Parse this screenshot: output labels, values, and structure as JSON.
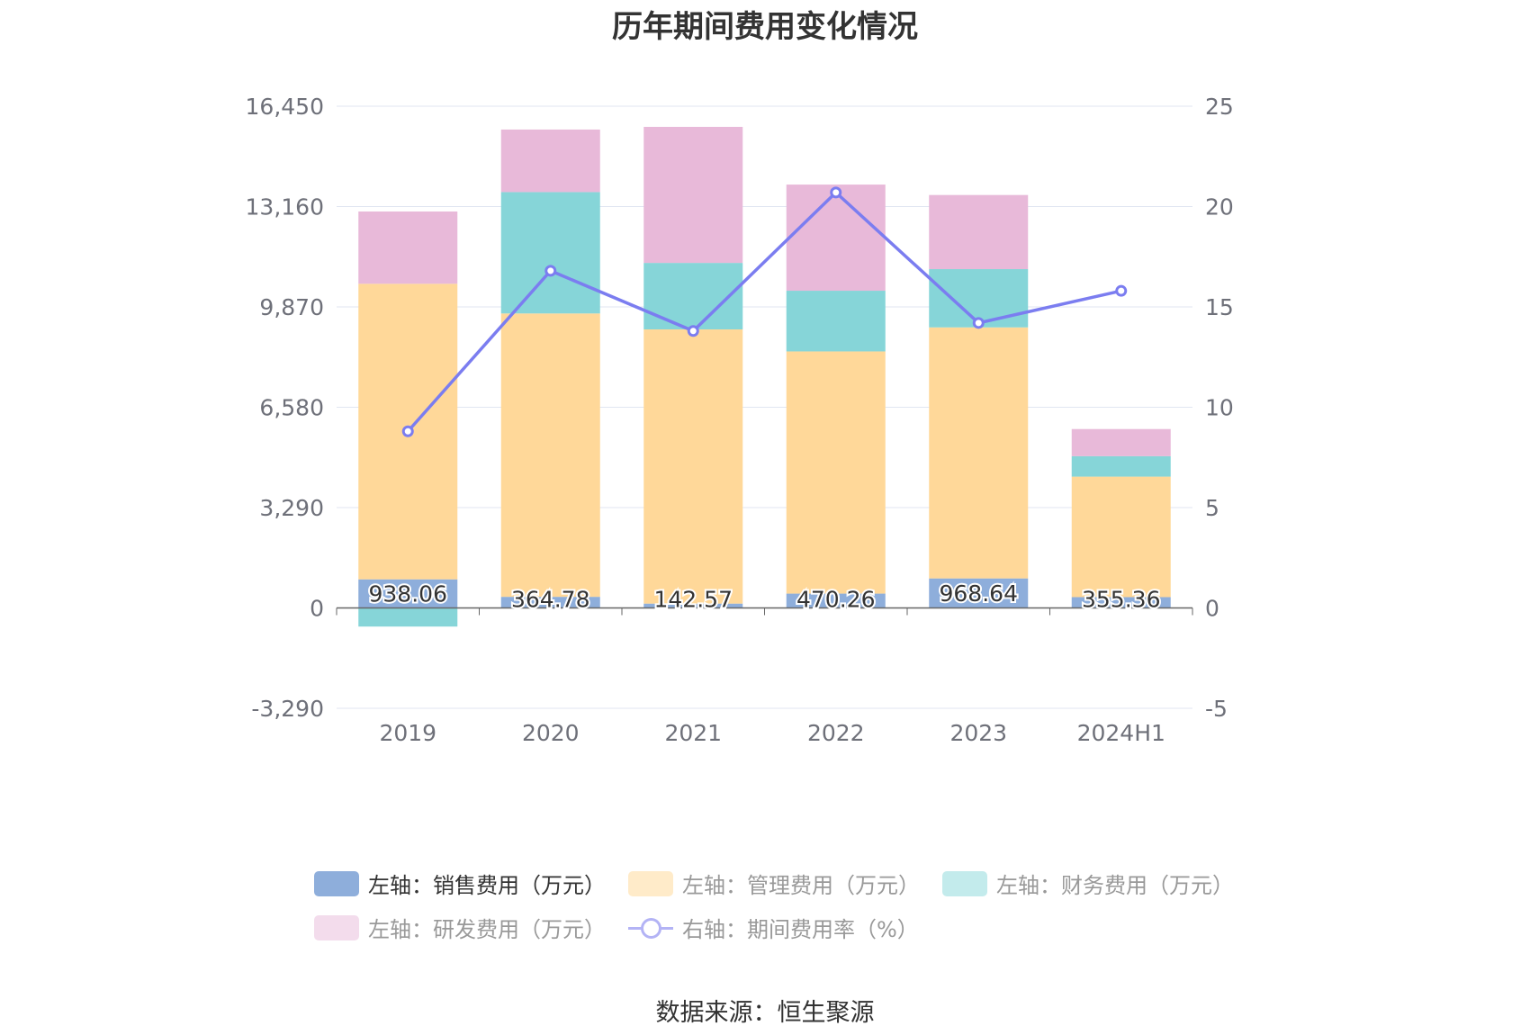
{
  "title": "历年期间费用变化情况",
  "source": "数据来源：恒生聚源",
  "chart_data": {
    "type": "bar",
    "stacked": true,
    "categories": [
      "2019",
      "2020",
      "2021",
      "2022",
      "2023",
      "2024H1"
    ],
    "y_left": {
      "ticks": [
        "16,450",
        "13,160",
        "9,870",
        "6,580",
        "3,290",
        "0",
        "-3,290"
      ],
      "range": [
        -3290,
        16450
      ]
    },
    "y_right": {
      "ticks": [
        "25",
        "20",
        "15",
        "10",
        "5",
        "0",
        "-5"
      ],
      "range": [
        -5,
        25
      ]
    },
    "grid": true,
    "legend_position": "bottom",
    "series": [
      {
        "name": "左轴：销售费用（万元）",
        "type": "bar",
        "axis": "left",
        "color": "#8eaedb",
        "values": [
          938.06,
          364.78,
          142.57,
          470.26,
          968.64,
          355.36
        ],
        "labels": [
          "938.06",
          "364.78",
          "142.57",
          "470.26",
          "968.64",
          "355.36"
        ]
      },
      {
        "name": "左轴：管理费用（万元）",
        "type": "bar",
        "axis": "left",
        "color": "#ffd899",
        "values": [
          9690,
          9290,
          8990,
          7940,
          8230,
          3950
        ]
      },
      {
        "name": "左轴：财务费用（万元）",
        "type": "bar",
        "axis": "left",
        "color": "#86d5d8",
        "values": [
          -610,
          3980,
          2180,
          1990,
          1910,
          670
        ]
      },
      {
        "name": "左轴：研发费用（万元）",
        "type": "bar",
        "axis": "left",
        "color": "#e8b9d9",
        "values": [
          2370,
          2050,
          4460,
          3480,
          2430,
          890
        ]
      },
      {
        "name": "右轴：期间费用率（%）",
        "type": "line",
        "axis": "right",
        "color": "#7b7df0",
        "values": [
          8.8,
          16.8,
          13.8,
          20.7,
          14.2,
          15.8
        ]
      }
    ]
  },
  "legend": [
    {
      "label": "左轴：销售费用（万元）",
      "color": "#8eaedb",
      "text_color": "#333333",
      "kind": "bar"
    },
    {
      "label": "左轴：管理费用（万元）",
      "color": "#ffebc9",
      "text_color": "#999999",
      "kind": "bar"
    },
    {
      "label": "左轴：财务费用（万元）",
      "color": "#c3ebec",
      "text_color": "#999999",
      "kind": "bar"
    },
    {
      "label": "左轴：研发费用（万元）",
      "color": "#f3dcec",
      "text_color": "#999999",
      "kind": "bar"
    },
    {
      "label": "右轴：期间费用率（%）",
      "color": "#b3b3f5",
      "text_color": "#999999",
      "kind": "line"
    }
  ]
}
